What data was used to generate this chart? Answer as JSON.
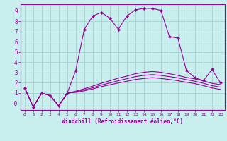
{
  "xlabel": "Windchill (Refroidissement éolien,°C)",
  "background_color": "#c8eeee",
  "line_color": "#990099",
  "grid_color": "#a8d4d4",
  "xlim": [
    -0.5,
    23.5
  ],
  "ylim": [
    -0.65,
    9.65
  ],
  "xticks": [
    0,
    1,
    2,
    3,
    4,
    5,
    6,
    7,
    8,
    9,
    10,
    11,
    12,
    13,
    14,
    15,
    16,
    17,
    18,
    19,
    20,
    21,
    22,
    23
  ],
  "yticks": [
    0,
    1,
    2,
    3,
    4,
    5,
    6,
    7,
    8,
    9
  ],
  "ytick_labels": [
    "-0",
    "1",
    "2",
    "3",
    "4",
    "5",
    "6",
    "7",
    "8",
    "9"
  ],
  "main_x": [
    0,
    1,
    2,
    3,
    4,
    5,
    6,
    7,
    8,
    9,
    10,
    11,
    12,
    13,
    14,
    15,
    16,
    17,
    18,
    19,
    20,
    21,
    22,
    23
  ],
  "main_y": [
    1.5,
    -0.35,
    1.0,
    0.75,
    -0.25,
    1.0,
    3.2,
    7.2,
    8.5,
    8.85,
    8.3,
    7.2,
    8.5,
    9.1,
    9.25,
    9.25,
    9.05,
    6.5,
    6.35,
    3.2,
    2.5,
    2.2,
    3.3,
    2.0
  ],
  "fan_lines": [
    [
      1.5,
      -0.35,
      1.0,
      0.75,
      -0.25,
      1.0,
      1.18,
      1.42,
      1.68,
      1.95,
      2.2,
      2.45,
      2.65,
      2.88,
      3.02,
      3.1,
      3.02,
      2.88,
      2.72,
      2.52,
      2.38,
      2.18,
      1.95,
      1.82
    ],
    [
      1.5,
      -0.35,
      1.0,
      0.75,
      -0.25,
      1.0,
      1.12,
      1.32,
      1.52,
      1.78,
      1.98,
      2.2,
      2.4,
      2.6,
      2.72,
      2.8,
      2.72,
      2.6,
      2.48,
      2.3,
      2.15,
      1.95,
      1.72,
      1.58
    ],
    [
      1.5,
      -0.35,
      1.0,
      0.75,
      -0.25,
      1.0,
      1.06,
      1.22,
      1.4,
      1.62,
      1.8,
      1.98,
      2.15,
      2.32,
      2.42,
      2.5,
      2.42,
      2.32,
      2.2,
      2.05,
      1.92,
      1.72,
      1.5,
      1.35
    ]
  ]
}
